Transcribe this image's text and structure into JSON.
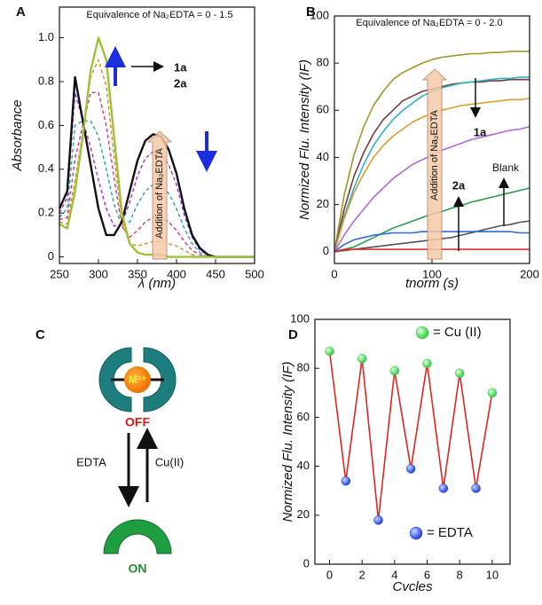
{
  "chart_data": [
    {
      "type": "line",
      "label": "A",
      "x_label": "λ (nm)",
      "y_label": "Absorbance",
      "annotations": [
        "Equivalence of Na₂EDTA = 0 - 1.5",
        "1a",
        "2a",
        "Addition of Na₂EDTA"
      ],
      "xlim": [
        250,
        500
      ],
      "xticks": [
        250,
        300,
        350,
        400,
        450,
        500
      ],
      "ylim": [
        -0.03,
        1.14
      ],
      "yticks": [
        0,
        0.2,
        0.4,
        0.6,
        0.8,
        {
          "value": 1,
          "label": "1.0"
        }
      ],
      "x": [
        250,
        260,
        270,
        280,
        290,
        300,
        310,
        320,
        330,
        340,
        350,
        360,
        370,
        380,
        390,
        400,
        410,
        420,
        430,
        440,
        450,
        460,
        470,
        480,
        490,
        500
      ],
      "series": [
        {
          "color": "#9b30d9",
          "dashed": true,
          "values": [
            0.2,
            0.27,
            0.75,
            0.62,
            0.5,
            0.35,
            0.22,
            0.14,
            0.15,
            0.25,
            0.37,
            0.45,
            0.48,
            0.47,
            0.42,
            0.33,
            0.19,
            0.09,
            0.03,
            0.01,
            0,
            0,
            0,
            0,
            0,
            0
          ]
        },
        {
          "color": "#1aa5a5",
          "dashed": true,
          "values": [
            0.18,
            0.22,
            0.6,
            0.62,
            0.62,
            0.55,
            0.4,
            0.24,
            0.14,
            0.16,
            0.24,
            0.3,
            0.33,
            0.32,
            0.29,
            0.22,
            0.13,
            0.06,
            0.02,
            0,
            0,
            0,
            0,
            0,
            0,
            0
          ]
        },
        {
          "color": "#e0307a",
          "dashed": true,
          "values": [
            0.17,
            0.18,
            0.45,
            0.6,
            0.75,
            0.75,
            0.6,
            0.36,
            0.14,
            0.09,
            0.12,
            0.16,
            0.18,
            0.18,
            0.16,
            0.12,
            0.07,
            0.03,
            0.01,
            0,
            0,
            0,
            0,
            0,
            0,
            0
          ]
        },
        {
          "color": "#d08a20",
          "dashed": true,
          "values": [
            0.16,
            0.15,
            0.35,
            0.57,
            0.82,
            0.9,
            0.78,
            0.46,
            0.16,
            0.06,
            0.05,
            0.06,
            0.07,
            0.07,
            0.06,
            0.05,
            0.03,
            0.01,
            0,
            0,
            0,
            0,
            0,
            0,
            0,
            0
          ]
        },
        {
          "color": "#111111",
          "dashed": false,
          "values": [
            0.22,
            0.3,
            0.82,
            0.62,
            0.42,
            0.22,
            0.1,
            0.1,
            0.16,
            0.3,
            0.44,
            0.53,
            0.56,
            0.55,
            0.49,
            0.38,
            0.22,
            0.1,
            0.04,
            0.01,
            0,
            0,
            0,
            0,
            0,
            0
          ]
        },
        {
          "color": "#9dc23a",
          "dashed": false,
          "values": [
            0.15,
            0.13,
            0.3,
            0.55,
            0.85,
            1.0,
            0.9,
            0.55,
            0.2,
            0.06,
            0.02,
            0.01,
            0.01,
            0.01,
            0,
            0,
            0,
            0,
            0,
            0,
            0,
            0,
            0,
            0,
            0,
            0
          ]
        }
      ]
    },
    {
      "type": "line",
      "label": "B",
      "x_label": "tnorm (s)",
      "y_label": "Normized Flu. Intensity (IF)",
      "annotations": [
        "Equivalence of Na₂EDTA = 0 - 2.0",
        "Addition of Na₂EDTA",
        "1a",
        "2a",
        "Blank"
      ],
      "xlim": [
        0,
        200
      ],
      "xticks": [
        0,
        100,
        200
      ],
      "ylim": [
        -5,
        100
      ],
      "yticks": [
        0,
        20,
        40,
        60,
        80,
        100
      ],
      "x": [
        0,
        10,
        20,
        30,
        40,
        50,
        60,
        70,
        80,
        90,
        100,
        110,
        120,
        130,
        140,
        150,
        160,
        170,
        180,
        190,
        200
      ],
      "series": [
        {
          "color": "#9a9a2a",
          "dashed": false,
          "values": [
            0,
            24,
            41,
            53,
            62,
            68,
            73,
            76,
            78,
            80,
            81.5,
            82.5,
            83,
            83.5,
            84,
            84,
            84.5,
            84.5,
            85,
            85,
            85
          ]
        },
        {
          "color": "#7a3b3b",
          "dashed": false,
          "values": [
            0,
            18,
            32,
            42,
            50,
            56,
            60,
            64,
            66,
            68,
            69,
            70,
            71,
            71.5,
            72,
            72,
            72.5,
            72.5,
            73,
            73,
            73
          ]
        },
        {
          "color": "#29b5c9",
          "dashed": false,
          "values": [
            0,
            15,
            27,
            37,
            45,
            51,
            56,
            60,
            63,
            66,
            68,
            69.5,
            70.5,
            71.5,
            72,
            72.5,
            73,
            73.5,
            73.5,
            74,
            74
          ]
        },
        {
          "color": "#e39a2a",
          "dashed": false,
          "values": [
            0,
            14,
            25,
            33,
            40,
            45,
            49,
            52,
            55,
            57,
            58.5,
            60,
            61,
            62,
            62.5,
            63,
            63.5,
            64,
            64.5,
            64.5,
            65
          ]
        },
        {
          "color": "#b266e0",
          "dashed": false,
          "values": [
            0,
            7,
            13,
            18,
            23,
            27,
            31,
            34,
            37,
            39,
            41,
            43,
            44.5,
            46,
            47.5,
            48.5,
            49.5,
            50.5,
            51.5,
            52,
            53
          ]
        },
        {
          "color": "#2e9e4e",
          "dashed": false,
          "values": [
            0,
            1,
            2,
            4,
            6,
            8,
            10,
            11.5,
            13,
            14.5,
            16,
            17,
            18.5,
            19.5,
            21,
            22,
            23,
            24,
            25,
            26,
            27
          ]
        },
        {
          "color": "#555555",
          "dashed": false,
          "values": [
            0,
            0.5,
            1,
            1.5,
            2,
            2.5,
            3,
            3.5,
            4,
            4.5,
            5,
            5.5,
            6,
            7,
            8,
            9,
            10,
            11,
            11.5,
            12.5,
            13
          ]
        },
        {
          "color": "#2f6fd0",
          "dashed": false,
          "values": [
            0,
            3,
            5,
            6,
            7,
            7.5,
            8,
            8,
            8,
            8.5,
            8.5,
            8.5,
            8.5,
            8.5,
            8.5,
            8.5,
            8.5,
            8.5,
            8.5,
            8,
            8
          ]
        },
        {
          "color": "#e03030",
          "dashed": false,
          "values": [
            0,
            1,
            1,
            1,
            1,
            1,
            1,
            1,
            1,
            1,
            1,
            1,
            1,
            1,
            1,
            1,
            1,
            1,
            1,
            1,
            1
          ]
        }
      ]
    },
    {
      "type": "line",
      "label": "D",
      "x_label": "Cvcles",
      "y_label": "Normized Flu. Intensity (IF)",
      "annotations": [],
      "xlim": [
        -0.9,
        11.1
      ],
      "xticks": [
        0,
        2,
        4,
        6,
        8,
        10
      ],
      "ylim": [
        0,
        100
      ],
      "yticks": [
        0,
        20,
        40,
        60,
        80,
        100
      ],
      "x": [
        0,
        1,
        2,
        3,
        4,
        5,
        6,
        7,
        8,
        9,
        10
      ],
      "series": [
        {
          "color": "#e8231f",
          "dashed": false,
          "values": [
            87,
            34,
            84,
            18,
            79,
            39,
            82,
            31,
            78,
            31,
            70
          ],
          "marker_colors": [
            "#2ecc40",
            "#2040e0",
            "#2ecc40",
            "#2040e0",
            "#2ecc40",
            "#2040e0",
            "#2ecc40",
            "#2040e0",
            "#2ecc40",
            "#2040e0",
            "#2ecc40"
          ]
        }
      ],
      "legend": [
        {
          "name": "= Cu (II)",
          "color": "#2ecc40"
        },
        {
          "name": "= EDTA",
          "color": "#2040e0"
        }
      ]
    }
  ],
  "diagram": {
    "label": "C",
    "metal": "M²⁺",
    "off": "OFF",
    "on": "ON",
    "forward": "EDTA",
    "reverse": "Cu(II)"
  }
}
